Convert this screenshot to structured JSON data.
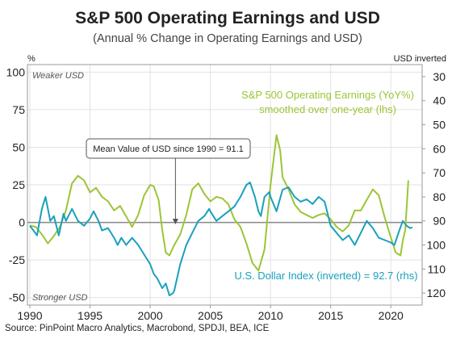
{
  "chart_data": {
    "type": "line",
    "title": "S&P 500 Operating Earnings and USD",
    "subtitle": "(Annual % Change in Operating Earnings and USD)",
    "left_axis_unit": "%",
    "right_axis_unit": "USD inverted",
    "xlim": [
      1989.8,
      2022.6
    ],
    "ylim_left": [
      -55,
      105
    ],
    "ylim_right": [
      125,
      25
    ],
    "x_ticks": [
      1990,
      1995,
      2000,
      2005,
      2010,
      2015,
      2020
    ],
    "y_ticks_left": [
      100,
      75,
      50,
      25,
      0,
      -25,
      -50
    ],
    "y_ticks_right": [
      30,
      40,
      50,
      60,
      70,
      80,
      90,
      100,
      110,
      120
    ],
    "grid": true,
    "notes": {
      "weaker": "Weaker USD",
      "stronger": "Stronger USD"
    },
    "mean_label": "Mean Value of USD since 1990 = 91.1",
    "mean_line": {
      "axis": "rhs",
      "value": 91.1
    },
    "series": [
      {
        "name": "S&P 500 Operating Earnings (YoY%) smoothed over one-year (lhs)",
        "label_line1": "S&P 500 Operating Earnings (YoY%)",
        "label_line2": "smoothed over one-year (lhs)",
        "axis": "lhs",
        "color": "#9cc536",
        "points": [
          [
            1990,
            -2
          ],
          [
            1990.5,
            -3
          ],
          [
            1991,
            -8
          ],
          [
            1991.5,
            -14
          ],
          [
            1992,
            -9
          ],
          [
            1992.5,
            -3
          ],
          [
            1993,
            8
          ],
          [
            1993.5,
            26
          ],
          [
            1994,
            31
          ],
          [
            1994.5,
            28
          ],
          [
            1995,
            20
          ],
          [
            1995.5,
            23
          ],
          [
            1996,
            17
          ],
          [
            1996.5,
            14
          ],
          [
            1997,
            8
          ],
          [
            1997.5,
            11
          ],
          [
            1998,
            4
          ],
          [
            1998.5,
            -3
          ],
          [
            1999,
            5
          ],
          [
            1999.5,
            18
          ],
          [
            2000,
            25
          ],
          [
            2000.3,
            24
          ],
          [
            2000.7,
            15
          ],
          [
            2001,
            -5
          ],
          [
            2001.3,
            -20
          ],
          [
            2001.6,
            -22
          ],
          [
            2002,
            -15
          ],
          [
            2002.5,
            -8
          ],
          [
            2003,
            5
          ],
          [
            2003.5,
            22
          ],
          [
            2004,
            26
          ],
          [
            2004.5,
            19
          ],
          [
            2005,
            14
          ],
          [
            2005.5,
            17
          ],
          [
            2006,
            16
          ],
          [
            2006.5,
            12
          ],
          [
            2007,
            2
          ],
          [
            2007.5,
            -3
          ],
          [
            2008,
            -14
          ],
          [
            2008.5,
            -27
          ],
          [
            2009,
            -32
          ],
          [
            2009.5,
            -18
          ],
          [
            2010,
            25
          ],
          [
            2010.5,
            58
          ],
          [
            2010.8,
            48
          ],
          [
            2011,
            30
          ],
          [
            2011.5,
            22
          ],
          [
            2012,
            12
          ],
          [
            2012.5,
            7
          ],
          [
            2013,
            5
          ],
          [
            2013.5,
            3
          ],
          [
            2014,
            5
          ],
          [
            2014.5,
            6
          ],
          [
            2015,
            2
          ],
          [
            2015.5,
            -3
          ],
          [
            2016,
            -6
          ],
          [
            2016.5,
            -2
          ],
          [
            2017,
            8
          ],
          [
            2017.5,
            8
          ],
          [
            2018,
            15
          ],
          [
            2018.5,
            22
          ],
          [
            2019,
            18
          ],
          [
            2019.5,
            3
          ],
          [
            2020,
            -10
          ],
          [
            2020.4,
            -20
          ],
          [
            2020.8,
            -22
          ],
          [
            2021,
            -12
          ],
          [
            2021.2,
            -5
          ],
          [
            2021.45,
            28
          ]
        ]
      },
      {
        "name": "U.S. Dollar Index (inverted) = 92.7 (rhs)",
        "axis": "rhs",
        "color": "#1aa0bd",
        "points": [
          [
            1990,
            92
          ],
          [
            1990.3,
            94
          ],
          [
            1990.6,
            96
          ],
          [
            1991,
            85
          ],
          [
            1991.3,
            80
          ],
          [
            1991.7,
            90
          ],
          [
            1992,
            88
          ],
          [
            1992.4,
            96
          ],
          [
            1992.8,
            87
          ],
          [
            1993,
            90
          ],
          [
            1993.5,
            85
          ],
          [
            1994,
            90
          ],
          [
            1994.5,
            92
          ],
          [
            1995,
            89
          ],
          [
            1995.3,
            86
          ],
          [
            1995.7,
            90
          ],
          [
            1996,
            94
          ],
          [
            1996.5,
            93
          ],
          [
            1997,
            97
          ],
          [
            1997.3,
            100
          ],
          [
            1997.6,
            97
          ],
          [
            1998,
            100
          ],
          [
            1998.5,
            97
          ],
          [
            1999,
            100
          ],
          [
            1999.5,
            104
          ],
          [
            2000,
            108
          ],
          [
            2000.3,
            112
          ],
          [
            2000.6,
            114
          ],
          [
            2001,
            118
          ],
          [
            2001.3,
            116
          ],
          [
            2001.6,
            121
          ],
          [
            2001.9,
            120
          ],
          [
            2002,
            119
          ],
          [
            2002.5,
            108
          ],
          [
            2003,
            100
          ],
          [
            2003.5,
            95
          ],
          [
            2004,
            90
          ],
          [
            2004.5,
            88
          ],
          [
            2004.9,
            85
          ],
          [
            2005,
            86
          ],
          [
            2005.5,
            90
          ],
          [
            2006,
            88
          ],
          [
            2006.5,
            86
          ],
          [
            2007,
            84
          ],
          [
            2007.5,
            80
          ],
          [
            2008,
            75
          ],
          [
            2008.3,
            74
          ],
          [
            2008.7,
            80
          ],
          [
            2009,
            86
          ],
          [
            2009.2,
            88
          ],
          [
            2009.5,
            80
          ],
          [
            2009.9,
            78
          ],
          [
            2010,
            80
          ],
          [
            2010.5,
            86
          ],
          [
            2011,
            77
          ],
          [
            2011.5,
            76
          ],
          [
            2012,
            80
          ],
          [
            2012.5,
            82
          ],
          [
            2013,
            81
          ],
          [
            2013.5,
            83
          ],
          [
            2014,
            80
          ],
          [
            2014.5,
            82
          ],
          [
            2015,
            92
          ],
          [
            2015.5,
            95
          ],
          [
            2016,
            98
          ],
          [
            2016.5,
            96
          ],
          [
            2017,
            100
          ],
          [
            2017.5,
            95
          ],
          [
            2018,
            90
          ],
          [
            2018.5,
            93
          ],
          [
            2019,
            97
          ],
          [
            2019.5,
            98
          ],
          [
            2020,
            99
          ],
          [
            2020.3,
            100
          ],
          [
            2020.7,
            94
          ],
          [
            2021,
            90
          ],
          [
            2021.3,
            92
          ],
          [
            2021.6,
            93
          ],
          [
            2021.8,
            92.7
          ]
        ]
      }
    ]
  },
  "blue_label": "U.S. Dollar Index (inverted) = 92.7 (rhs)",
  "source": "Source: PinPoint Macro Analytics, Macrobond, SPDJI, BEA, ICE"
}
